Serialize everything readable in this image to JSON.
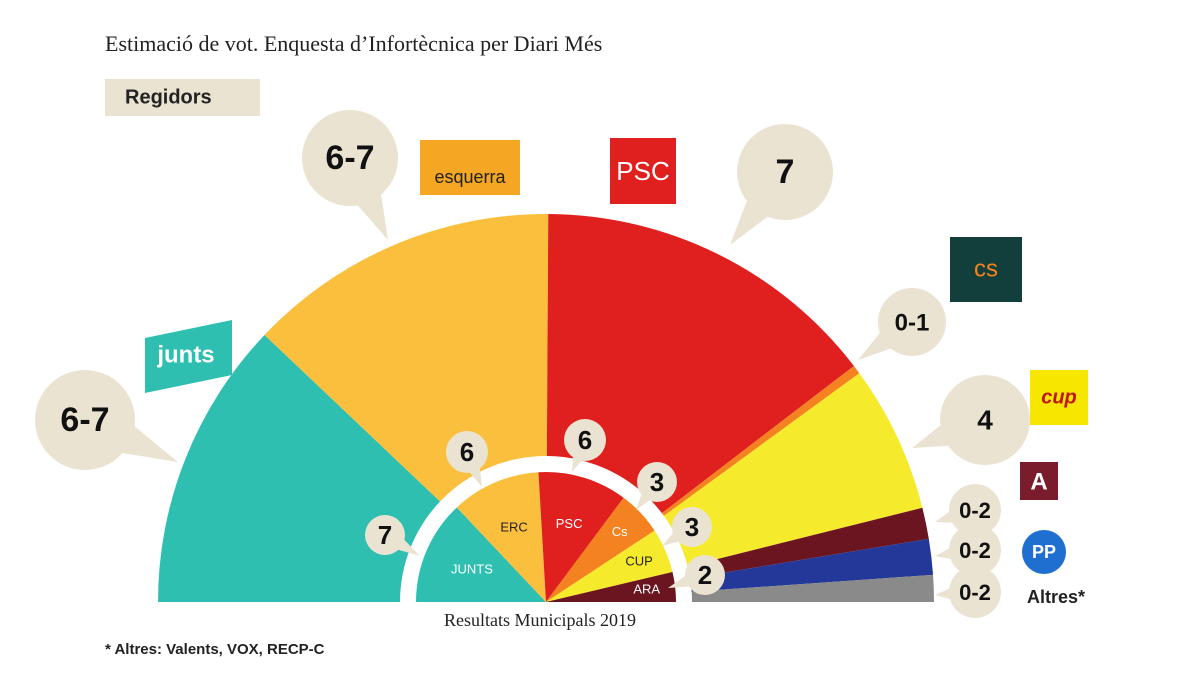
{
  "chart_data": [
    {
      "type": "donut",
      "title": "Estimació de vot. Enquesta d’Infortècnica per Diari Més",
      "subtitle": "Regidors",
      "footnote": "* Altres: Valents, VOX, RECP-C",
      "categories": [
        "junts",
        "esquerra",
        "PSC",
        "cs",
        "cup",
        "A",
        "PP",
        "Altres*"
      ],
      "values": [
        6.5,
        7,
        7.8,
        0.2,
        3.3,
        0.7,
        0.8,
        0.6
      ],
      "seat_labels": [
        "6-7",
        "6-7",
        "7",
        "0-1",
        "4",
        "0-2",
        "0-2",
        "0-2"
      ],
      "colors": [
        "#2fbfb1",
        "#fbbf3e",
        "#e0201f",
        "#f58220",
        "#f6ea2c",
        "#6b1520",
        "#24389a",
        "#8a8a8a"
      ]
    },
    {
      "type": "pie",
      "title": "Resultats Municipals 2019",
      "categories": [
        "JUNTS",
        "ERC",
        "PSC",
        "Cs",
        "CUP",
        "ARA"
      ],
      "values": [
        7,
        6,
        6,
        3,
        3,
        2
      ],
      "colors": [
        "#2fbfb1",
        "#fbbf3e",
        "#e0201f",
        "#f58220",
        "#f6ea2c",
        "#6b1520"
      ]
    }
  ]
}
